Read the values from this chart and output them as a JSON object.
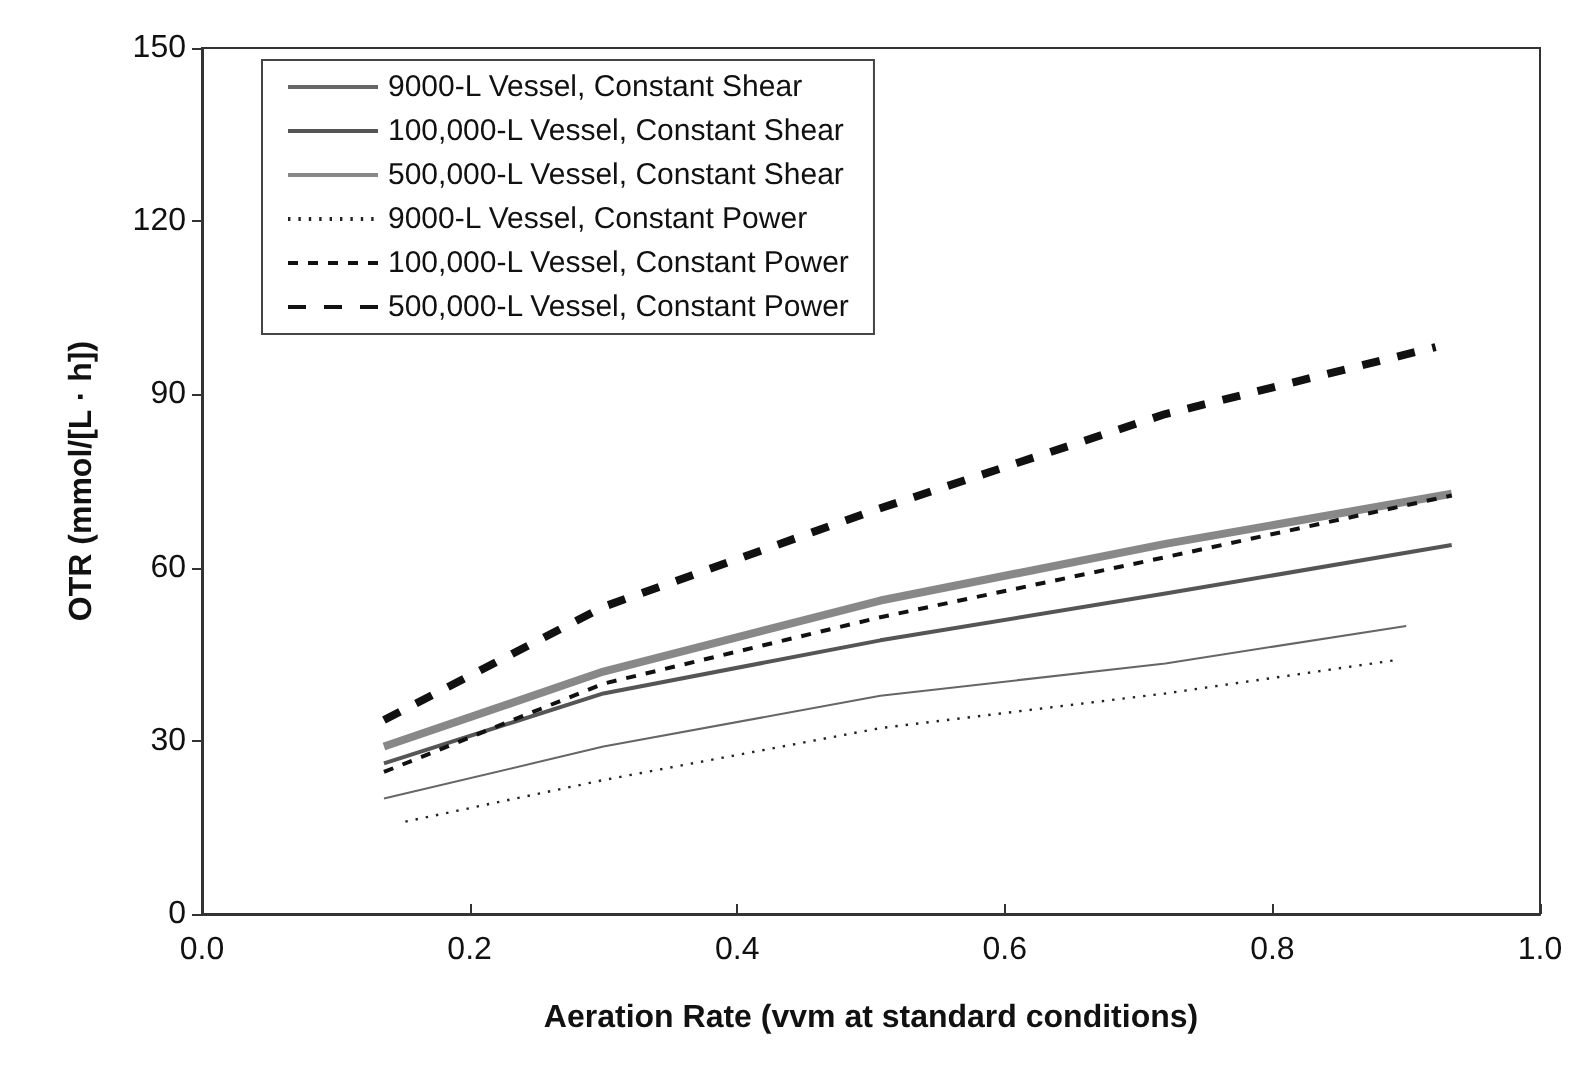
{
  "chart_data": {
    "type": "line",
    "xlabel": "Aeration Rate (vvm at standard conditions)",
    "ylabel": "OTR (mmol/[L · h])",
    "xlim": [
      0,
      1
    ],
    "xticks": [
      {
        "value": 0,
        "label": "0.0"
      },
      {
        "value": 0.2,
        "label": "0.2"
      },
      {
        "value": 0.4,
        "label": "0.4"
      },
      {
        "value": 0.6,
        "label": "0.6"
      },
      {
        "value": 0.8,
        "label": "0.8"
      },
      {
        "value": 1,
        "label": "1.0"
      }
    ],
    "ylim": [
      0,
      150
    ],
    "yticks": [
      0,
      30,
      60,
      90,
      120,
      150
    ],
    "grid": false,
    "legend": "top left",
    "marker": "none",
    "series": [
      {
        "name": "9000-L Vessel, Constant Shear",
        "color": "#666666",
        "line_style": "solid",
        "x": [
          0.136,
          0.3,
          0.507,
          0.72,
          0.9
        ],
        "values": [
          20.0,
          29.0,
          37.8,
          43.4,
          49.9
        ]
      },
      {
        "name": "100,000-L Vessel, Constant Shear",
        "color": "#555555",
        "line_style": "solid",
        "x": [
          0.136,
          0.3,
          0.507,
          0.72,
          0.934
        ],
        "values": [
          26.1,
          38.2,
          47.4,
          55.5,
          63.9
        ]
      },
      {
        "name": "500,000-L Vessel, Constant Shear",
        "color": "#888888",
        "line_style": "solid",
        "x": [
          0.136,
          0.3,
          0.507,
          0.72,
          0.934
        ],
        "values": [
          29.0,
          42.0,
          54.3,
          64.1,
          72.8
        ]
      },
      {
        "name": "9000-L Vessel, Constant Power",
        "color": "#222222",
        "line_style": "dotted",
        "x": [
          0.152,
          0.3,
          0.507,
          0.72,
          0.89
        ],
        "values": [
          16.0,
          23.2,
          32.2,
          38.2,
          43.9
        ]
      },
      {
        "name": "100,000-L Vessel, Constant Power",
        "color": "#111111",
        "line_style": "dashed",
        "x": [
          0.136,
          0.3,
          0.507,
          0.72,
          0.934
        ],
        "values": [
          24.6,
          39.9,
          51.4,
          61.8,
          72.5
        ]
      },
      {
        "name": "500,000-L Vessel, Constant Power",
        "color": "#111111",
        "line_style": "dashed",
        "x": [
          0.136,
          0.3,
          0.502,
          0.72,
          0.922
        ],
        "values": [
          33.6,
          53.2,
          69.9,
          86.6,
          98.2
        ]
      }
    ]
  }
}
